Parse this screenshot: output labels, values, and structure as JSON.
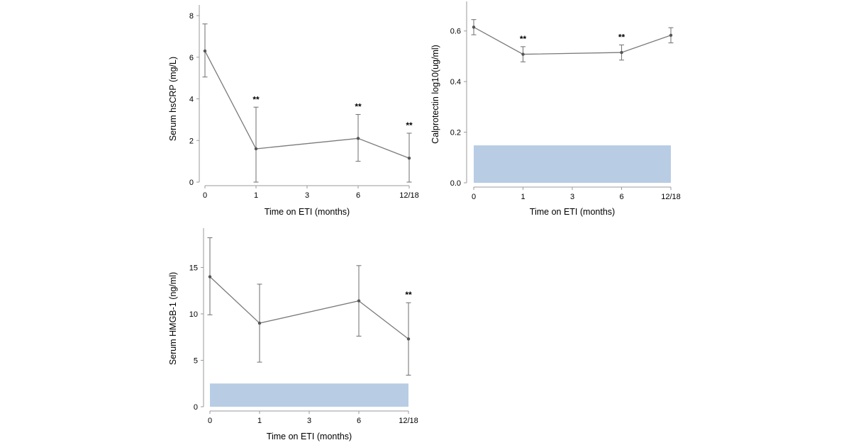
{
  "colors": {
    "line": "#7a7a7a",
    "axis": "#9a9a9a",
    "band": "#b8cce4",
    "text": "#000000"
  },
  "chart_data": [
    {
      "type": "line",
      "id": "hscrp",
      "xlabel": "Time on ETI (months)",
      "ylabel": "Serum hsCRP (mg/L)",
      "x_ticks": [
        {
          "pos": 0,
          "label": "0"
        },
        {
          "pos": 1,
          "label": "1"
        },
        {
          "pos": 3,
          "label": "3"
        },
        {
          "pos": 6,
          "label": "6"
        },
        {
          "pos": 12,
          "label": "12/18"
        }
      ],
      "x_positions": {
        "0": 0,
        "1": 1,
        "3": 2,
        "6": 3,
        "12": 4
      },
      "ylim": [
        0,
        8
      ],
      "y_ticks": [
        0,
        2,
        4,
        6,
        8
      ],
      "y_tick_labels": [
        "0",
        "2",
        "4",
        "6",
        "8"
      ],
      "series": [
        {
          "name": "hsCRP",
          "points": [
            {
              "x": 0,
              "y": 6.3,
              "lo": 5.05,
              "hi": 7.6,
              "sig": ""
            },
            {
              "x": 1,
              "y": 1.6,
              "lo": 0.0,
              "hi": 3.6,
              "sig": "**"
            },
            {
              "x": 6,
              "y": 2.1,
              "lo": 1.0,
              "hi": 3.25,
              "sig": "**"
            },
            {
              "x": 12,
              "y": 1.15,
              "lo": 0.0,
              "hi": 2.35,
              "sig": "**"
            }
          ]
        }
      ],
      "reference_band": null
    },
    {
      "type": "line",
      "id": "calprotectin",
      "xlabel": "Time on ETI (months)",
      "ylabel": "Calprotectin log10(ug/ml)",
      "x_ticks": [
        {
          "pos": 0,
          "label": "0"
        },
        {
          "pos": 1,
          "label": "1"
        },
        {
          "pos": 3,
          "label": "3"
        },
        {
          "pos": 6,
          "label": "6"
        },
        {
          "pos": 12,
          "label": "12/18"
        }
      ],
      "x_positions": {
        "0": 0,
        "1": 1,
        "3": 2,
        "6": 3,
        "12": 4
      },
      "ylim": [
        0,
        0.7
      ],
      "y_ticks": [
        0,
        0.2,
        0.4,
        0.6
      ],
      "y_tick_labels": [
        "0.0",
        "0.2",
        "0.4",
        "0.6"
      ],
      "series": [
        {
          "name": "Calprotectin",
          "points": [
            {
              "x": 0,
              "y": 0.615,
              "lo": 0.585,
              "hi": 0.645,
              "sig": ""
            },
            {
              "x": 1,
              "y": 0.508,
              "lo": 0.478,
              "hi": 0.538,
              "sig": "**"
            },
            {
              "x": 6,
              "y": 0.515,
              "lo": 0.485,
              "hi": 0.545,
              "sig": "**"
            },
            {
              "x": 12,
              "y": 0.583,
              "lo": 0.553,
              "hi": 0.613,
              "sig": ""
            }
          ]
        }
      ],
      "reference_band": {
        "y_from": 0.0,
        "y_to": 0.148
      }
    },
    {
      "type": "line",
      "id": "hmgb1",
      "xlabel": "Time on ETI (months)",
      "ylabel": "Serum HMGB-1 (ng/ml)",
      "x_ticks": [
        {
          "pos": 0,
          "label": "0"
        },
        {
          "pos": 1,
          "label": "1"
        },
        {
          "pos": 3,
          "label": "3"
        },
        {
          "pos": 6,
          "label": "6"
        },
        {
          "pos": 12,
          "label": "12/18"
        }
      ],
      "x_positions": {
        "0": 0,
        "1": 1,
        "3": 2,
        "6": 3,
        "12": 4
      },
      "ylim": [
        0,
        19
      ],
      "y_ticks": [
        0,
        5,
        10,
        15
      ],
      "y_tick_labels": [
        "0",
        "5",
        "10",
        "15"
      ],
      "series": [
        {
          "name": "HMGB-1",
          "points": [
            {
              "x": 0,
              "y": 14.0,
              "lo": 9.9,
              "hi": 18.2,
              "sig": ""
            },
            {
              "x": 1,
              "y": 9.0,
              "lo": 4.8,
              "hi": 13.2,
              "sig": ""
            },
            {
              "x": 6,
              "y": 11.4,
              "lo": 7.6,
              "hi": 15.2,
              "sig": ""
            },
            {
              "x": 12,
              "y": 7.3,
              "lo": 3.4,
              "hi": 11.2,
              "sig": "**"
            }
          ]
        }
      ],
      "reference_band": {
        "y_from": 0.0,
        "y_to": 2.5
      }
    }
  ]
}
